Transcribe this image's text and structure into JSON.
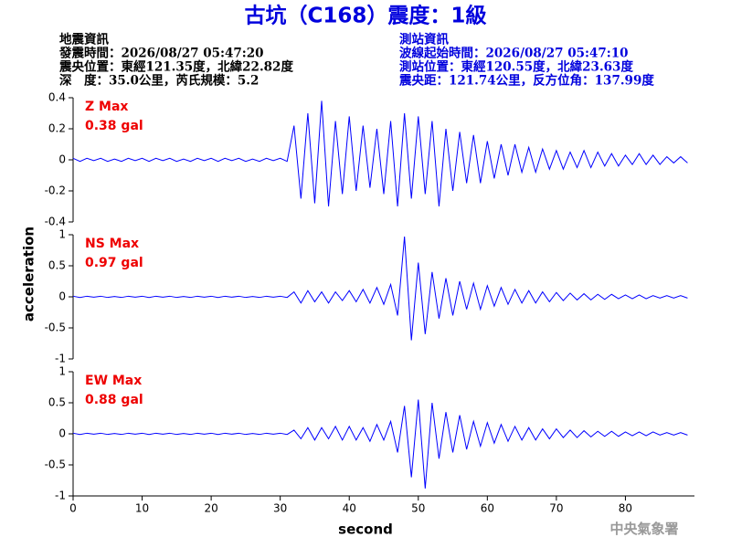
{
  "header": {
    "title": "古坑（C168）震度：1級",
    "left_lines": [
      "地震資訊",
      "發震時間：2026/08/27 05:47:20",
      "震央位置：東經121.35度，北緯22.82度",
      "深　度：35.0公里，芮氏規模：5.2"
    ],
    "right_lines": [
      "測站資訊",
      "波線起始時間：2026/08/27 05:47:10",
      "測站位置：東經120.55度，北緯23.63度",
      "震央距：121.74公里，反方位角：137.99度"
    ],
    "agency": "中央氣象署"
  },
  "chart_data": [
    {
      "type": "line",
      "annotations": [
        "Z Max",
        "0.38 gal"
      ],
      "color": "#0000ff",
      "x": [
        0,
        1,
        2,
        3,
        4,
        5,
        6,
        7,
        8,
        9,
        10,
        11,
        12,
        13,
        14,
        15,
        16,
        17,
        18,
        19,
        20,
        21,
        22,
        23,
        24,
        25,
        26,
        27,
        28,
        29,
        30,
        31,
        32,
        33,
        34,
        35,
        36,
        37,
        38,
        39,
        40,
        41,
        42,
        43,
        44,
        45,
        46,
        47,
        48,
        49,
        50,
        51,
        52,
        53,
        54,
        55,
        56,
        57,
        58,
        59,
        60,
        61,
        62,
        63,
        64,
        65,
        66,
        67,
        68,
        69,
        70,
        71,
        72,
        73,
        74,
        75,
        76,
        77,
        78,
        79,
        80,
        81,
        82,
        83,
        84,
        85,
        86,
        87,
        88,
        89
      ],
      "values": [
        0.01,
        -0.01,
        0.01,
        -0.005,
        0.01,
        -0.01,
        0.005,
        -0.01,
        0.01,
        -0.005,
        0.01,
        -0.01,
        0.01,
        -0.005,
        0.01,
        -0.01,
        0.005,
        -0.01,
        0.01,
        -0.005,
        0.01,
        -0.01,
        0.01,
        -0.005,
        0.01,
        -0.01,
        0.005,
        -0.01,
        0.01,
        -0.005,
        0.01,
        -0.01,
        0.22,
        -0.25,
        0.3,
        -0.28,
        0.38,
        -0.3,
        0.25,
        -0.22,
        0.28,
        -0.2,
        0.22,
        -0.18,
        0.2,
        -0.22,
        0.25,
        -0.3,
        0.3,
        -0.25,
        0.28,
        -0.22,
        0.25,
        -0.3,
        0.2,
        -0.2,
        0.18,
        -0.15,
        0.16,
        -0.15,
        0.12,
        -0.12,
        0.1,
        -0.1,
        0.1,
        -0.08,
        0.08,
        -0.08,
        0.07,
        -0.06,
        0.06,
        -0.06,
        0.05,
        -0.05,
        0.06,
        -0.05,
        0.05,
        -0.04,
        0.04,
        -0.04,
        0.03,
        -0.03,
        0.04,
        -0.03,
        0.03,
        -0.03,
        0.02,
        -0.02,
        0.02,
        -0.02
      ],
      "xlim": [
        0,
        90
      ],
      "ylim": [
        -0.4,
        0.4
      ],
      "yticks": [
        -0.4,
        -0.2,
        0,
        0.2,
        0.4
      ]
    },
    {
      "type": "line",
      "annotations": [
        "NS Max",
        "0.97 gal"
      ],
      "color": "#0000ff",
      "ylabel": "acceleration",
      "x": [
        0,
        1,
        2,
        3,
        4,
        5,
        6,
        7,
        8,
        9,
        10,
        11,
        12,
        13,
        14,
        15,
        16,
        17,
        18,
        19,
        20,
        21,
        22,
        23,
        24,
        25,
        26,
        27,
        28,
        29,
        30,
        31,
        32,
        33,
        34,
        35,
        36,
        37,
        38,
        39,
        40,
        41,
        42,
        43,
        44,
        45,
        46,
        47,
        48,
        49,
        50,
        51,
        52,
        53,
        54,
        55,
        56,
        57,
        58,
        59,
        60,
        61,
        62,
        63,
        64,
        65,
        66,
        67,
        68,
        69,
        70,
        71,
        72,
        73,
        74,
        75,
        76,
        77,
        78,
        79,
        80,
        81,
        82,
        83,
        84,
        85,
        86,
        87,
        88,
        89
      ],
      "values": [
        0.01,
        -0.01,
        0.01,
        -0.005,
        0.01,
        -0.01,
        0.005,
        -0.01,
        0.01,
        -0.005,
        0.01,
        -0.01,
        0.01,
        -0.005,
        0.01,
        -0.01,
        0.005,
        -0.01,
        0.01,
        -0.005,
        0.01,
        -0.01,
        0.01,
        -0.005,
        0.01,
        -0.01,
        0.005,
        -0.01,
        0.01,
        -0.005,
        0.01,
        -0.01,
        0.08,
        -0.1,
        0.1,
        -0.08,
        0.08,
        -0.1,
        0.08,
        -0.06,
        0.1,
        -0.08,
        0.12,
        -0.1,
        0.15,
        -0.12,
        0.2,
        -0.3,
        0.97,
        -0.7,
        0.55,
        -0.6,
        0.4,
        -0.35,
        0.3,
        -0.3,
        0.25,
        -0.2,
        0.22,
        -0.2,
        0.18,
        -0.15,
        0.15,
        -0.12,
        0.12,
        -0.1,
        0.1,
        -0.1,
        0.08,
        -0.08,
        0.07,
        -0.06,
        0.06,
        -0.05,
        0.05,
        -0.05,
        0.04,
        -0.04,
        0.04,
        -0.03,
        0.03,
        -0.03,
        0.03,
        -0.03,
        0.02,
        -0.02,
        0.02,
        -0.02,
        0.02,
        -0.02
      ],
      "xlim": [
        0,
        90
      ],
      "ylim": [
        -1,
        1
      ],
      "yticks": [
        -1,
        -0.5,
        0,
        0.5,
        1
      ]
    },
    {
      "type": "line",
      "annotations": [
        "EW Max",
        "0.88 gal"
      ],
      "color": "#0000ff",
      "xlabel": "second",
      "x": [
        0,
        1,
        2,
        3,
        4,
        5,
        6,
        7,
        8,
        9,
        10,
        11,
        12,
        13,
        14,
        15,
        16,
        17,
        18,
        19,
        20,
        21,
        22,
        23,
        24,
        25,
        26,
        27,
        28,
        29,
        30,
        31,
        32,
        33,
        34,
        35,
        36,
        37,
        38,
        39,
        40,
        41,
        42,
        43,
        44,
        45,
        46,
        47,
        48,
        49,
        50,
        51,
        52,
        53,
        54,
        55,
        56,
        57,
        58,
        59,
        60,
        61,
        62,
        63,
        64,
        65,
        66,
        67,
        68,
        69,
        70,
        71,
        72,
        73,
        74,
        75,
        76,
        77,
        78,
        79,
        80,
        81,
        82,
        83,
        84,
        85,
        86,
        87,
        88,
        89
      ],
      "values": [
        0.01,
        -0.01,
        0.01,
        -0.005,
        0.01,
        -0.01,
        0.005,
        -0.01,
        0.01,
        -0.005,
        0.01,
        -0.01,
        0.01,
        -0.005,
        0.01,
        -0.01,
        0.005,
        -0.01,
        0.01,
        -0.005,
        0.01,
        -0.01,
        0.01,
        -0.005,
        0.01,
        -0.01,
        0.005,
        -0.01,
        0.01,
        -0.005,
        0.01,
        -0.01,
        0.06,
        -0.08,
        0.1,
        -0.1,
        0.1,
        -0.08,
        0.12,
        -0.1,
        0.12,
        -0.1,
        0.1,
        -0.12,
        0.15,
        -0.1,
        0.2,
        -0.3,
        0.45,
        -0.7,
        0.55,
        -0.88,
        0.5,
        -0.4,
        0.35,
        -0.3,
        0.3,
        -0.25,
        0.2,
        -0.2,
        0.18,
        -0.15,
        0.15,
        -0.12,
        0.12,
        -0.1,
        0.1,
        -0.1,
        0.08,
        -0.08,
        0.08,
        -0.06,
        0.06,
        -0.06,
        0.05,
        -0.05,
        0.04,
        -0.04,
        0.04,
        -0.04,
        0.03,
        -0.03,
        0.03,
        -0.03,
        0.03,
        -0.02,
        0.02,
        -0.02,
        0.02,
        -0.02
      ],
      "xlim": [
        0,
        90
      ],
      "ylim": [
        -1,
        1
      ],
      "yticks": [
        -1,
        -0.5,
        0,
        0.5,
        1
      ],
      "xticks": [
        0,
        10,
        20,
        30,
        40,
        50,
        60,
        70,
        80
      ]
    }
  ]
}
